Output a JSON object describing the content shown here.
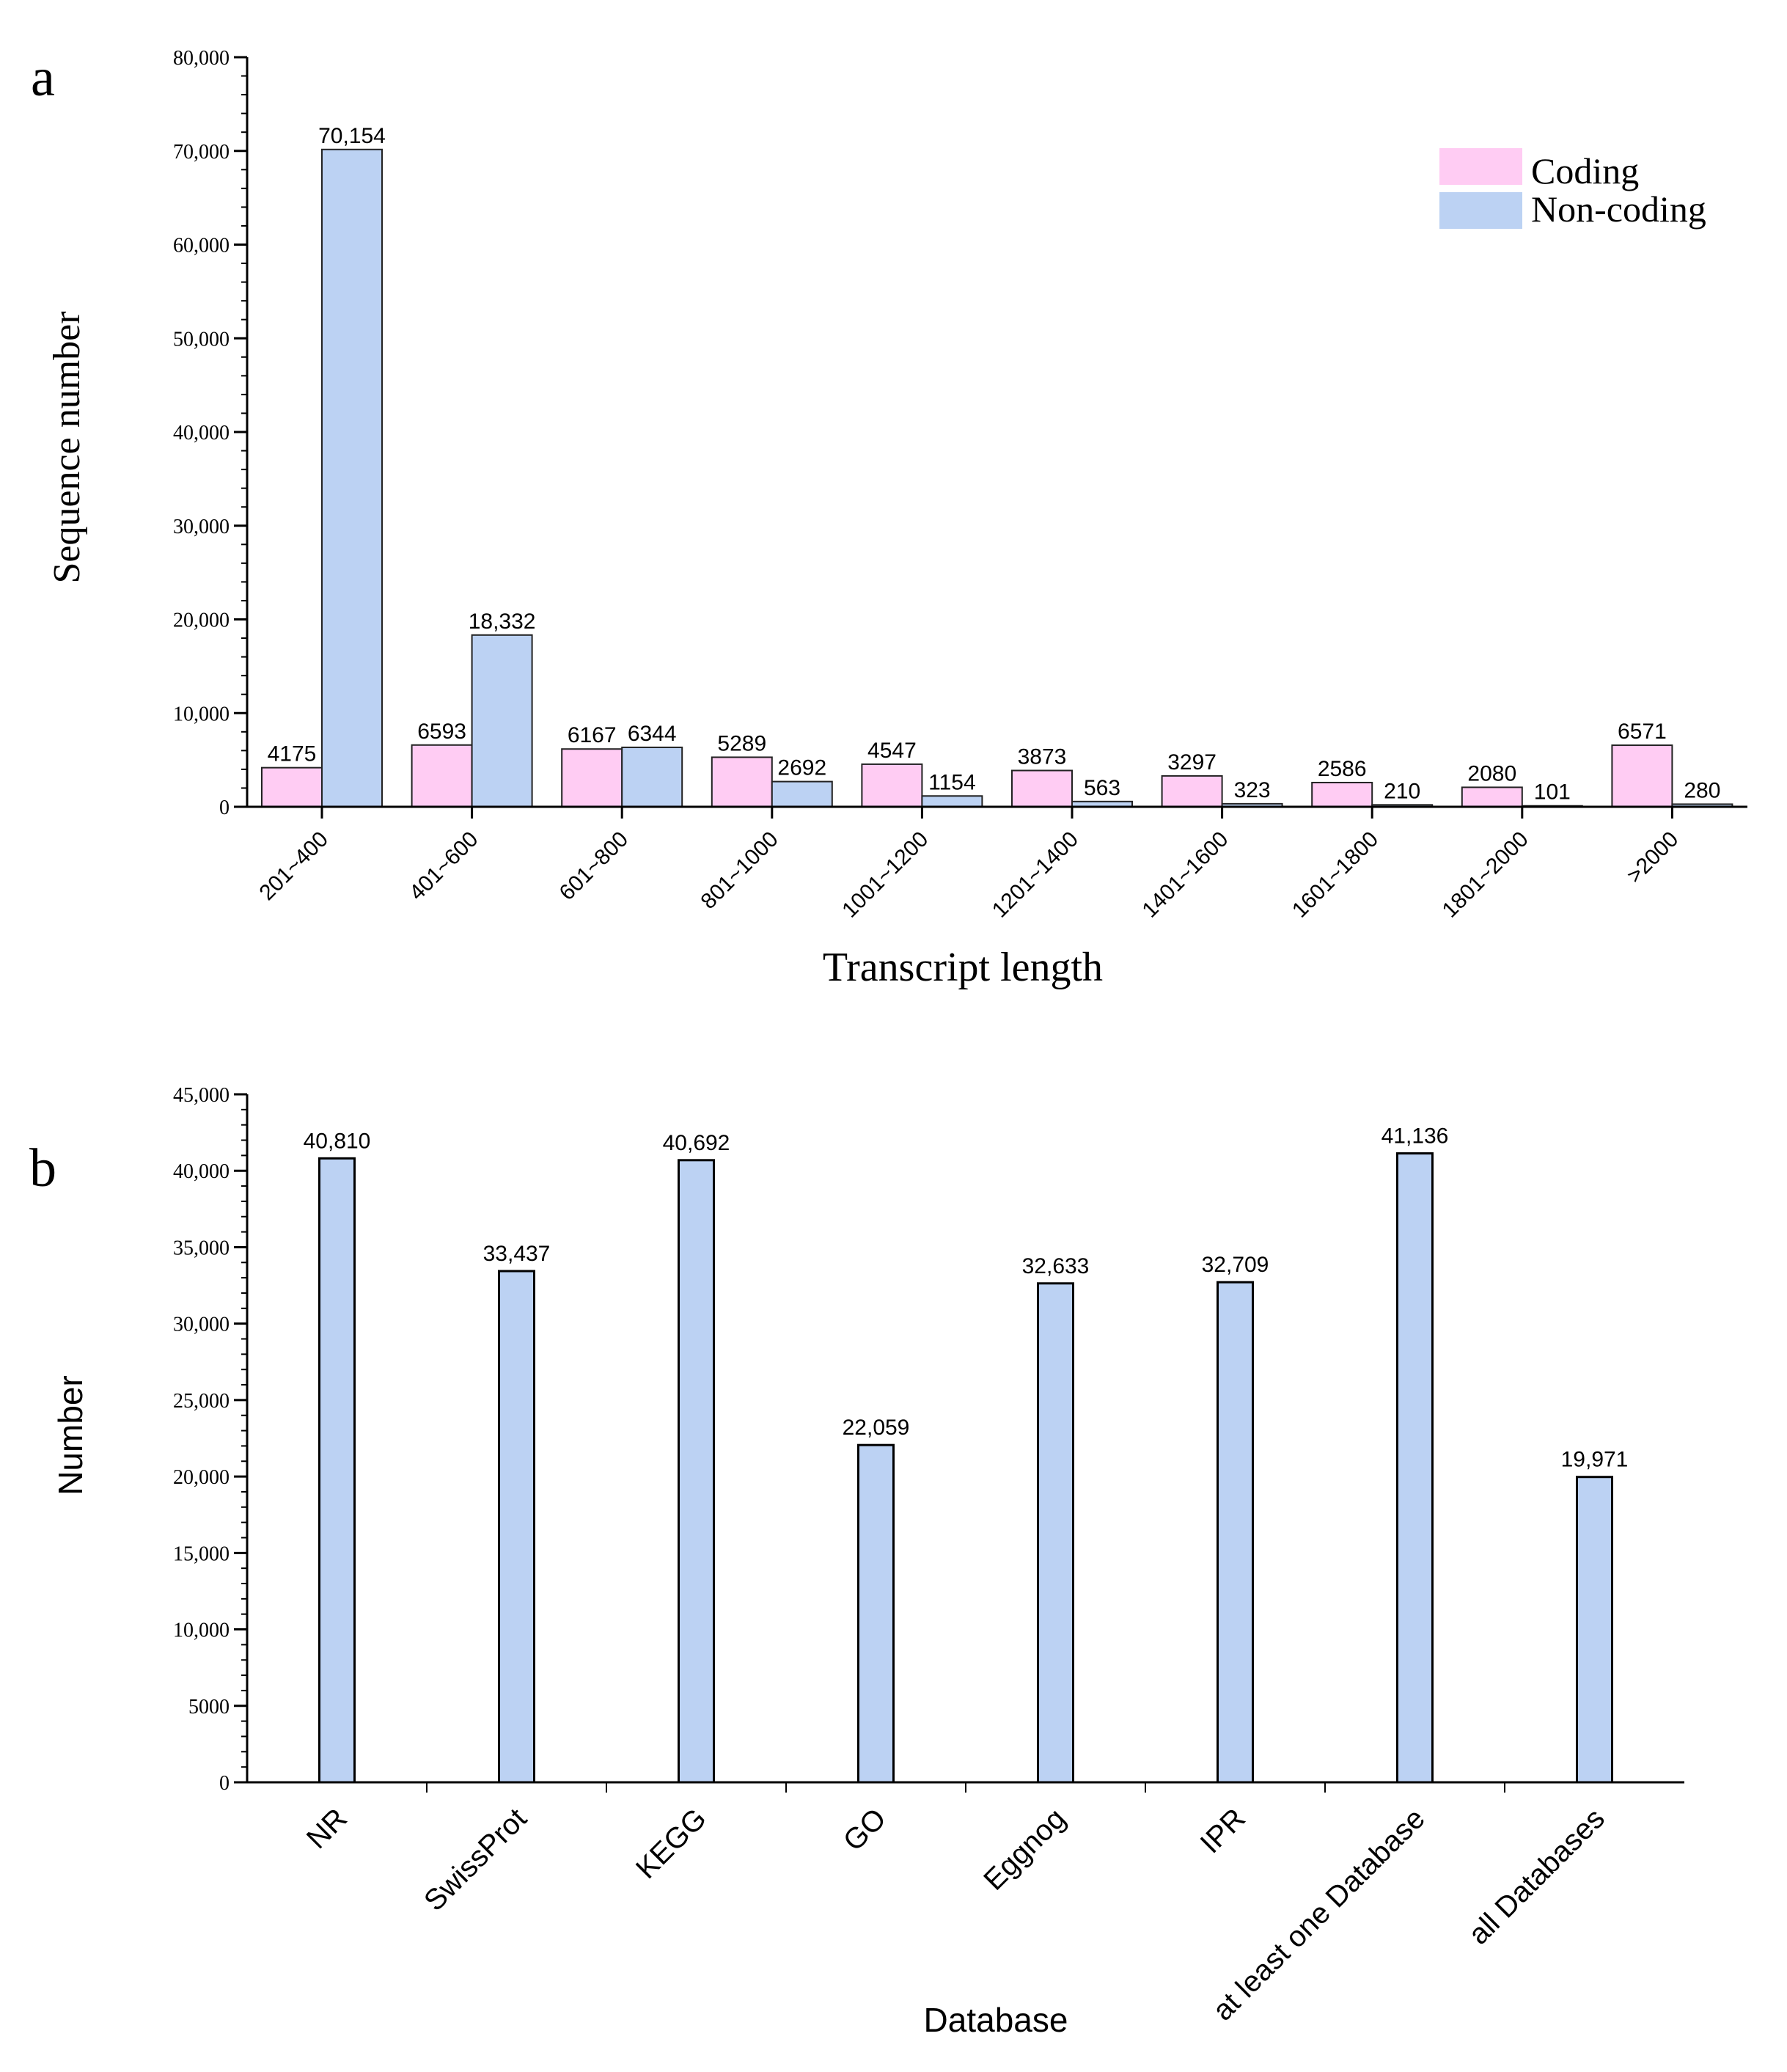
{
  "colors": {
    "coding": "#ffccf3",
    "noncoding": "#bcd2f3",
    "bar_b": "#bcd2f3",
    "axis": "#000000",
    "bar_edge": "#222222"
  },
  "chart_data": [
    {
      "panel_letter": "a",
      "type": "bar",
      "title": "",
      "xlabel": "Transcript length",
      "ylabel": "Sequence number",
      "ylim": [
        0,
        80000
      ],
      "major_ticks": [
        0,
        10000,
        20000,
        30000,
        40000,
        50000,
        60000,
        70000,
        80000
      ],
      "tick_labels": [
        "0",
        "10,000",
        "20,000",
        "30,000",
        "40,000",
        "50,000",
        "60,000",
        "70,000",
        "80,000"
      ],
      "minor_step": 2000,
      "categories": [
        "201~400",
        "401~600",
        "601~800",
        "801~1000",
        "1001~1200",
        "1201~1400",
        "1401~1600",
        "1601~1800",
        "1801~2000",
        ">2000"
      ],
      "legend_position": "top-right",
      "series": [
        {
          "name": "Coding",
          "color_key": "coding",
          "values": [
            4175,
            6593,
            6167,
            5289,
            4547,
            3873,
            3297,
            2586,
            2080,
            6571
          ],
          "labels": [
            "4175",
            "6593",
            "6167",
            "5289",
            "4547",
            "3873",
            "3297",
            "2586",
            "2080",
            "6571"
          ]
        },
        {
          "name": "Non-coding",
          "color_key": "noncoding",
          "values": [
            70154,
            18332,
            6344,
            2692,
            1154,
            563,
            323,
            210,
            101,
            280
          ],
          "labels": [
            "70,154",
            "18,332",
            "6344",
            "2692",
            "1154",
            "563",
            "323",
            "210",
            "101",
            "280"
          ]
        }
      ]
    },
    {
      "panel_letter": "b",
      "type": "bar",
      "title": "",
      "xlabel": "Database",
      "ylabel": "Number",
      "ylim": [
        0,
        45000
      ],
      "major_ticks": [
        0,
        5000,
        10000,
        15000,
        20000,
        25000,
        30000,
        35000,
        40000,
        45000
      ],
      "tick_labels": [
        "0",
        "5000",
        "10,000",
        "15,000",
        "20,000",
        "25,000",
        "30,000",
        "35,000",
        "40,000",
        "45,000"
      ],
      "minor_step": 1000,
      "categories": [
        "NR",
        "SwissProt",
        "KEGG",
        "GO",
        "Eggnog",
        "IPR",
        "at least one Database",
        "all Databases"
      ],
      "series": [
        {
          "name": "Number",
          "color_key": "bar_b",
          "values": [
            40810,
            33437,
            40692,
            22059,
            32633,
            32709,
            41136,
            19971
          ],
          "labels": [
            "40,810",
            "33,437",
            "40,692",
            "22,059",
            "32,633",
            "32,709",
            "41,136",
            "19,971"
          ]
        }
      ]
    }
  ]
}
